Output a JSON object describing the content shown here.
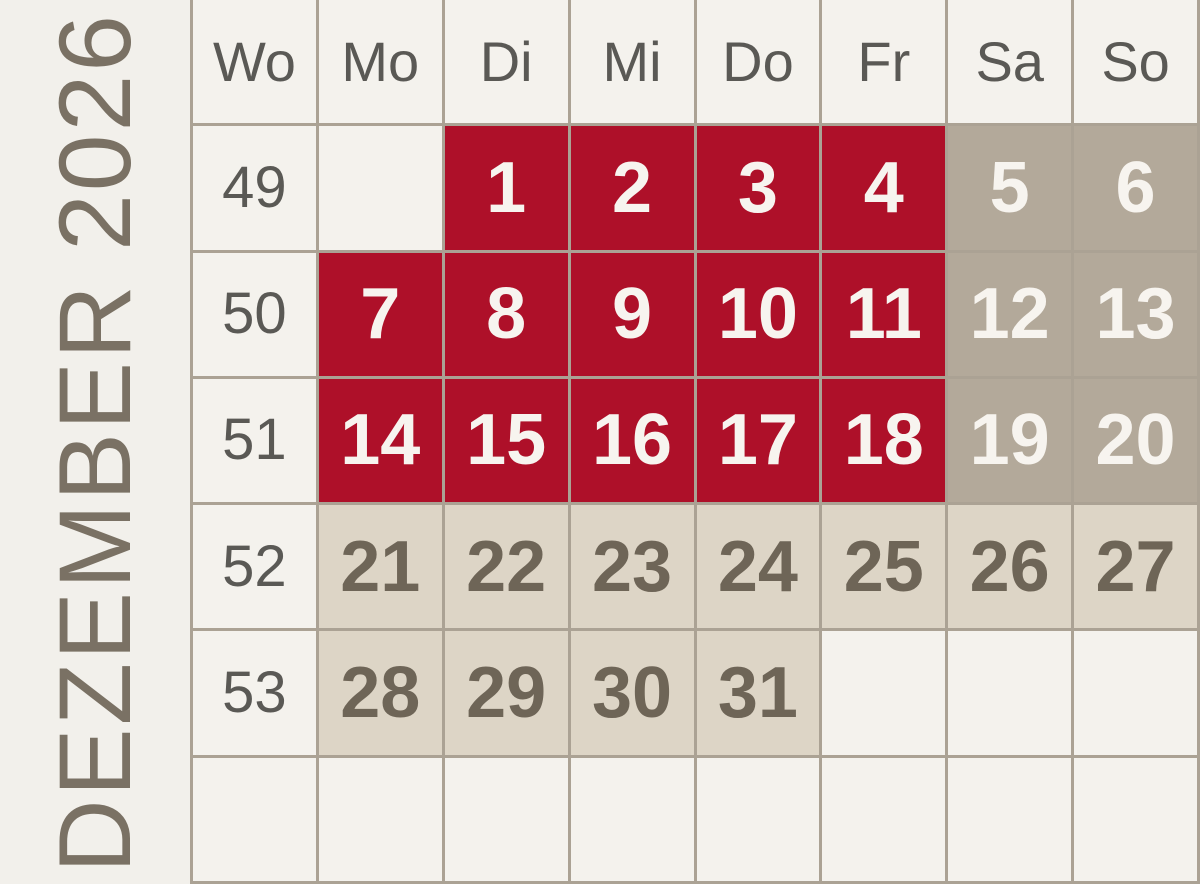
{
  "title": "DEZEMBER 2026",
  "colors": {
    "background": "#F2F0EB",
    "grid_line": "#ABA294",
    "workday_red": "#AE1029",
    "weekend_taupe": "#B3A99A",
    "holiday_light_taupe": "#DDD5C6",
    "cell_background": "#F4F2ED",
    "header_text": "#5A5955",
    "holiday_text": "#6E6557",
    "light_text": "#F7F4EF",
    "title_text": "#7A7164"
  },
  "calendar": {
    "header": [
      "Wo",
      "Mo",
      "Di",
      "Mi",
      "Do",
      "Fr",
      "Sa",
      "So"
    ],
    "rows": [
      {
        "week": "49",
        "days": [
          {
            "label": "",
            "type": "empty"
          },
          {
            "label": "1",
            "type": "red"
          },
          {
            "label": "2",
            "type": "red"
          },
          {
            "label": "3",
            "type": "red"
          },
          {
            "label": "4",
            "type": "red"
          },
          {
            "label": "5",
            "type": "weekend"
          },
          {
            "label": "6",
            "type": "weekend"
          }
        ]
      },
      {
        "week": "50",
        "days": [
          {
            "label": "7",
            "type": "red"
          },
          {
            "label": "8",
            "type": "red"
          },
          {
            "label": "9",
            "type": "red"
          },
          {
            "label": "10",
            "type": "red"
          },
          {
            "label": "11",
            "type": "red"
          },
          {
            "label": "12",
            "type": "weekend"
          },
          {
            "label": "13",
            "type": "weekend"
          }
        ]
      },
      {
        "week": "51",
        "days": [
          {
            "label": "14",
            "type": "red"
          },
          {
            "label": "15",
            "type": "red"
          },
          {
            "label": "16",
            "type": "red"
          },
          {
            "label": "17",
            "type": "red"
          },
          {
            "label": "18",
            "type": "red"
          },
          {
            "label": "19",
            "type": "weekend"
          },
          {
            "label": "20",
            "type": "weekend"
          }
        ]
      },
      {
        "week": "52",
        "days": [
          {
            "label": "21",
            "type": "holiday"
          },
          {
            "label": "22",
            "type": "holiday"
          },
          {
            "label": "23",
            "type": "holiday"
          },
          {
            "label": "24",
            "type": "holiday"
          },
          {
            "label": "25",
            "type": "holiday"
          },
          {
            "label": "26",
            "type": "holiday"
          },
          {
            "label": "27",
            "type": "holiday"
          }
        ]
      },
      {
        "week": "53",
        "days": [
          {
            "label": "28",
            "type": "holiday"
          },
          {
            "label": "29",
            "type": "holiday"
          },
          {
            "label": "30",
            "type": "holiday"
          },
          {
            "label": "31",
            "type": "holiday"
          },
          {
            "label": "",
            "type": "empty"
          },
          {
            "label": "",
            "type": "empty"
          },
          {
            "label": "",
            "type": "empty"
          }
        ]
      },
      {
        "week": "",
        "days": [
          {
            "label": "",
            "type": "empty"
          },
          {
            "label": "",
            "type": "empty"
          },
          {
            "label": "",
            "type": "empty"
          },
          {
            "label": "",
            "type": "empty"
          },
          {
            "label": "",
            "type": "empty"
          },
          {
            "label": "",
            "type": "empty"
          },
          {
            "label": "",
            "type": "empty"
          }
        ]
      }
    ]
  }
}
